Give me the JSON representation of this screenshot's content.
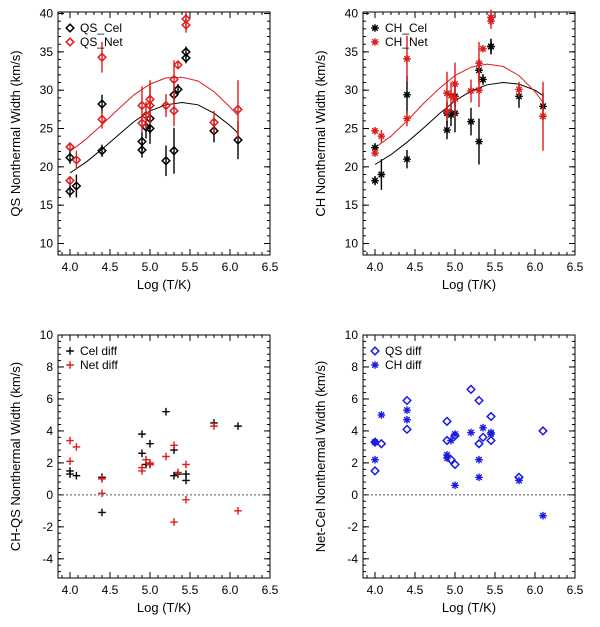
{
  "chart_data": [
    {
      "type": "scatter",
      "xlabel": "Log (T/K)",
      "ylabel": "QS Nonthermal Width (km/s)",
      "xlim": [
        3.85,
        6.5
      ],
      "ylim": [
        8.5,
        40.2
      ],
      "xticks": [
        4.0,
        4.5,
        5.0,
        5.5,
        6.0,
        6.5
      ],
      "xtick_labels": [
        "4.0",
        "4.5",
        "5.0",
        "5.5",
        "6.0",
        "6.5"
      ],
      "yticks": [
        10,
        15,
        20,
        25,
        30,
        35,
        40
      ],
      "ytick_labels": [
        "10",
        "15",
        "20",
        "25",
        "30",
        "35",
        "40"
      ],
      "legend": {
        "position": "top-left",
        "entries": [
          "QS_Cel",
          "QS_Net"
        ]
      },
      "series": [
        {
          "name": "QS_Cel",
          "marker": "diamond",
          "color": "#000000",
          "points": [
            [
              4.0,
              21.2
            ],
            [
              4.0,
              16.8
            ],
            [
              4.08,
              17.5
            ],
            [
              4.4,
              28.2
            ],
            [
              4.4,
              22.1
            ],
            [
              4.9,
              23.3
            ],
            [
              4.9,
              22.2
            ],
            [
              4.95,
              25.2
            ],
            [
              5.0,
              26.3
            ],
            [
              5.0,
              25.0
            ],
            [
              5.2,
              20.8
            ],
            [
              5.3,
              22.1
            ],
            [
              5.3,
              29.4
            ],
            [
              5.35,
              30.1
            ],
            [
              5.45,
              35.0
            ],
            [
              5.45,
              34.2
            ],
            [
              5.8,
              24.7
            ],
            [
              6.1,
              23.5
            ]
          ],
          "errors": [
            0.8,
            0.8,
            1.5,
            1.2,
            0.8,
            1.2,
            1.0,
            1.5,
            2.0,
            2.0,
            2.0,
            3.0,
            1.2,
            0.7,
            0.7,
            0.7,
            1.5,
            2.5
          ]
        },
        {
          "name": "QS_Net",
          "marker": "diamond",
          "color": "#dd1c1c",
          "points": [
            [
              4.0,
              22.6
            ],
            [
              4.0,
              18.2
            ],
            [
              4.08,
              20.9
            ],
            [
              4.4,
              34.3
            ],
            [
              4.4,
              26.2
            ],
            [
              4.9,
              28.0
            ],
            [
              4.9,
              25.7
            ],
            [
              4.95,
              26.7
            ],
            [
              5.0,
              28.8
            ],
            [
              5.0,
              28.0
            ],
            [
              5.2,
              28.0
            ],
            [
              5.3,
              27.3
            ],
            [
              5.3,
              31.4
            ],
            [
              5.35,
              33.3
            ],
            [
              5.45,
              39.3
            ],
            [
              5.45,
              38.5
            ],
            [
              5.8,
              25.8
            ],
            [
              6.1,
              27.5
            ]
          ],
          "errors": [
            0.6,
            0.6,
            1.2,
            2.0,
            1.2,
            2.5,
            1.2,
            1.8,
            2.5,
            2.5,
            1.5,
            2.0,
            2.5,
            0.4,
            1.0,
            1.0,
            1.5,
            3.8
          ]
        },
        {
          "name": "QS_Cel fit",
          "type": "line",
          "color": "#000000",
          "points": [
            [
              4.0,
              19.2
            ],
            [
              4.2,
              20.6
            ],
            [
              4.4,
              22.3
            ],
            [
              4.6,
              24.1
            ],
            [
              4.8,
              25.9
            ],
            [
              5.0,
              27.3
            ],
            [
              5.2,
              28.1
            ],
            [
              5.4,
              28.4
            ],
            [
              5.6,
              28.1
            ],
            [
              5.8,
              27.0
            ],
            [
              6.0,
              25.4
            ],
            [
              6.1,
              24.4
            ]
          ]
        },
        {
          "name": "QS_Net fit",
          "type": "line",
          "color": "#dd1c1c",
          "points": [
            [
              4.0,
              22.0
            ],
            [
              4.2,
              23.6
            ],
            [
              4.4,
              25.5
            ],
            [
              4.6,
              27.5
            ],
            [
              4.8,
              29.4
            ],
            [
              5.0,
              30.8
            ],
            [
              5.2,
              31.6
            ],
            [
              5.4,
              31.7
            ],
            [
              5.6,
              31.2
            ],
            [
              5.8,
              29.8
            ],
            [
              6.0,
              27.8
            ],
            [
              6.1,
              26.7
            ]
          ]
        }
      ]
    },
    {
      "type": "scatter",
      "xlabel": "Log (T/K)",
      "ylabel": "CH Nonthermal Width (km/s)",
      "xlim": [
        3.85,
        6.5
      ],
      "ylim": [
        8.5,
        40.2
      ],
      "xticks": [
        4.0,
        4.5,
        5.0,
        5.5,
        6.0,
        6.5
      ],
      "xtick_labels": [
        "4.0",
        "4.5",
        "5.0",
        "5.5",
        "6.0",
        "6.5"
      ],
      "yticks": [
        10,
        15,
        20,
        25,
        30,
        35,
        40
      ],
      "ytick_labels": [
        "10",
        "15",
        "20",
        "25",
        "30",
        "35",
        "40"
      ],
      "legend": {
        "position": "top-left",
        "entries": [
          "CH_Cel",
          "CH_Net"
        ]
      },
      "series": [
        {
          "name": "CH_Cel",
          "marker": "asterisk",
          "color": "#000000",
          "points": [
            [
              4.0,
              22.5
            ],
            [
              4.0,
              18.2
            ],
            [
              4.08,
              19.0
            ],
            [
              4.4,
              29.4
            ],
            [
              4.4,
              21.0
            ],
            [
              4.9,
              27.0
            ],
            [
              4.9,
              24.8
            ],
            [
              4.95,
              26.8
            ],
            [
              5.0,
              29.2
            ],
            [
              5.0,
              27.0
            ],
            [
              5.2,
              25.9
            ],
            [
              5.3,
              23.3
            ],
            [
              5.3,
              32.6
            ],
            [
              5.35,
              31.4
            ],
            [
              5.45,
              35.7
            ],
            [
              5.45,
              35.7
            ],
            [
              5.8,
              29.2
            ],
            [
              6.1,
              27.9
            ]
          ],
          "errors": [
            0.6,
            0.6,
            2.0,
            2.5,
            1.2,
            1.5,
            1.2,
            1.5,
            1.5,
            2.5,
            1.8,
            3.0,
            1.5,
            0.7,
            1.0,
            1.0,
            1.5,
            1.8
          ]
        },
        {
          "name": "CH_Net",
          "marker": "asterisk",
          "color": "#dd1c1c",
          "points": [
            [
              4.0,
              24.7
            ],
            [
              4.0,
              21.8
            ],
            [
              4.08,
              24.0
            ],
            [
              4.4,
              34.1
            ],
            [
              4.4,
              26.3
            ],
            [
              4.9,
              29.6
            ],
            [
              4.9,
              27.2
            ],
            [
              4.95,
              29.3
            ],
            [
              5.0,
              30.8
            ],
            [
              5.0,
              28.9
            ],
            [
              5.2,
              29.9
            ],
            [
              5.3,
              30.0
            ],
            [
              5.3,
              33.5
            ],
            [
              5.35,
              35.4
            ],
            [
              5.45,
              39.5
            ],
            [
              5.45,
              39.0
            ],
            [
              5.8,
              30.1
            ],
            [
              6.1,
              26.6
            ]
          ],
          "errors": [
            0.4,
            0.4,
            0.8,
            3.0,
            1.0,
            2.8,
            1.2,
            1.8,
            2.8,
            2.5,
            1.5,
            2.2,
            2.8,
            0.3,
            1.0,
            1.0,
            1.0,
            4.5
          ]
        },
        {
          "name": "CH_Cel fit",
          "type": "line",
          "color": "#000000",
          "points": [
            [
              4.0,
              20.3
            ],
            [
              4.2,
              21.6
            ],
            [
              4.4,
              23.2
            ],
            [
              4.6,
              25.0
            ],
            [
              4.8,
              26.9
            ],
            [
              5.0,
              28.6
            ],
            [
              5.2,
              29.9
            ],
            [
              5.4,
              30.7
            ],
            [
              5.6,
              31.0
            ],
            [
              5.8,
              30.8
            ],
            [
              6.0,
              30.0
            ],
            [
              6.1,
              29.3
            ]
          ]
        },
        {
          "name": "CH_Net fit",
          "type": "line",
          "color": "#dd1c1c",
          "points": [
            [
              4.0,
              22.5
            ],
            [
              4.2,
              24.0
            ],
            [
              4.4,
              26.0
            ],
            [
              4.6,
              28.2
            ],
            [
              4.8,
              30.2
            ],
            [
              5.0,
              31.9
            ],
            [
              5.2,
              33.0
            ],
            [
              5.4,
              33.4
            ],
            [
              5.6,
              33.1
            ],
            [
              5.8,
              31.9
            ],
            [
              6.0,
              29.8
            ],
            [
              6.1,
              28.4
            ]
          ]
        }
      ]
    },
    {
      "type": "scatter",
      "xlabel": "Log (T/K)",
      "ylabel": "CH-QS Nonthermal Width (km/s)",
      "xlim": [
        3.85,
        6.5
      ],
      "ylim": [
        -5.2,
        10.0
      ],
      "xticks": [
        4.0,
        4.5,
        5.0,
        5.5,
        6.0,
        6.5
      ],
      "xtick_labels": [
        "4.0",
        "4.5",
        "5.0",
        "5.5",
        "6.0",
        "6.5"
      ],
      "yticks": [
        -4,
        -2,
        0,
        2,
        4,
        6,
        8,
        10
      ],
      "ytick_labels": [
        "-4",
        "-2",
        "0",
        "2",
        "4",
        "6",
        "8",
        "10"
      ],
      "zero_line": true,
      "legend": {
        "position": "top-left",
        "entries": [
          "Cel diff",
          "Net diff"
        ]
      },
      "series": [
        {
          "name": "Cel diff",
          "marker": "plus",
          "color": "#000000",
          "points": [
            [
              4.0,
              1.5
            ],
            [
              4.0,
              1.3
            ],
            [
              4.08,
              1.2
            ],
            [
              4.4,
              1.1
            ],
            [
              4.4,
              -1.1
            ],
            [
              4.9,
              3.8
            ],
            [
              4.9,
              2.6
            ],
            [
              4.95,
              1.9
            ],
            [
              5.0,
              3.2
            ],
            [
              5.0,
              1.9
            ],
            [
              5.2,
              5.2
            ],
            [
              5.3,
              2.8
            ],
            [
              5.3,
              1.2
            ],
            [
              5.35,
              1.3
            ],
            [
              5.45,
              1.3
            ],
            [
              5.45,
              0.9
            ],
            [
              5.8,
              4.5
            ],
            [
              6.1,
              4.3
            ]
          ]
        },
        {
          "name": "Net diff",
          "marker": "plus",
          "color": "#dd1c1c",
          "points": [
            [
              4.0,
              3.4
            ],
            [
              4.0,
              2.1
            ],
            [
              4.08,
              3.0
            ],
            [
              4.4,
              0.1
            ],
            [
              4.4,
              1.0
            ],
            [
              4.9,
              1.7
            ],
            [
              4.9,
              1.5
            ],
            [
              4.95,
              2.2
            ],
            [
              5.0,
              2.0
            ],
            [
              5.0,
              1.9
            ],
            [
              5.2,
              2.4
            ],
            [
              5.3,
              3.1
            ],
            [
              5.3,
              -1.7
            ],
            [
              5.35,
              1.4
            ],
            [
              5.45,
              1.9
            ],
            [
              5.45,
              -0.3
            ],
            [
              5.8,
              4.3
            ],
            [
              6.1,
              -1.0
            ]
          ]
        }
      ]
    },
    {
      "type": "scatter",
      "xlabel": "Log (T/K)",
      "ylabel": "Net-Cel Nonthermal Width (km/s)",
      "xlim": [
        3.85,
        6.5
      ],
      "ylim": [
        -5.2,
        10.0
      ],
      "xticks": [
        4.0,
        4.5,
        5.0,
        5.5,
        6.0,
        6.5
      ],
      "xtick_labels": [
        "4.0",
        "4.5",
        "5.0",
        "5.5",
        "6.0",
        "6.5"
      ],
      "yticks": [
        -4,
        -2,
        0,
        2,
        4,
        6,
        8,
        10
      ],
      "ytick_labels": [
        "-4",
        "-2",
        "0",
        "2",
        "4",
        "6",
        "8",
        "10"
      ],
      "zero_line": true,
      "legend": {
        "position": "top-left",
        "entries": [
          "QS diff",
          "CH diff"
        ]
      },
      "series": [
        {
          "name": "QS diff",
          "marker": "diamond",
          "color": "#1a1ae6",
          "points": [
            [
              4.0,
              1.5
            ],
            [
              4.0,
              3.3
            ],
            [
              4.08,
              3.2
            ],
            [
              4.4,
              5.9
            ],
            [
              4.4,
              4.1
            ],
            [
              4.9,
              4.6
            ],
            [
              4.9,
              3.4
            ],
            [
              4.95,
              2.2
            ],
            [
              5.0,
              3.7
            ],
            [
              5.0,
              1.9
            ],
            [
              5.2,
              6.6
            ],
            [
              5.3,
              5.9
            ],
            [
              5.3,
              3.2
            ],
            [
              5.35,
              3.6
            ],
            [
              5.45,
              4.9
            ],
            [
              5.45,
              3.4
            ],
            [
              5.8,
              1.1
            ],
            [
              6.1,
              4.0
            ]
          ]
        },
        {
          "name": "CH diff",
          "marker": "asterisk",
          "color": "#1a1ae6",
          "points": [
            [
              4.0,
              2.2
            ],
            [
              4.0,
              3.3
            ],
            [
              4.08,
              5.0
            ],
            [
              4.4,
              5.3
            ],
            [
              4.4,
              4.7
            ],
            [
              4.9,
              2.5
            ],
            [
              4.9,
              2.3
            ],
            [
              4.95,
              3.4
            ],
            [
              5.0,
              3.8
            ],
            [
              5.0,
              0.6
            ],
            [
              5.2,
              3.9
            ],
            [
              5.3,
              2.2
            ],
            [
              5.3,
              1.1
            ],
            [
              5.35,
              4.2
            ],
            [
              5.45,
              3.9
            ],
            [
              5.45,
              3.8
            ],
            [
              5.8,
              0.9
            ],
            [
              6.1,
              -1.3
            ]
          ]
        }
      ]
    }
  ]
}
